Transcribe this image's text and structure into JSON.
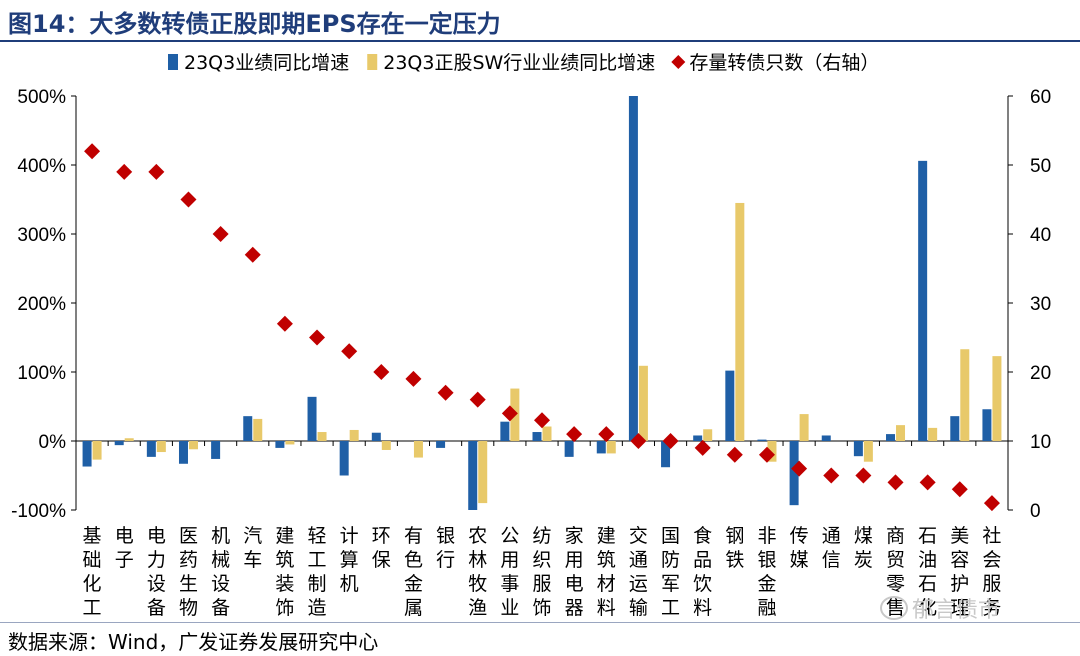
{
  "title": "图14：大多数转债正股即期EPS存在一定压力",
  "source": "数据来源：Wind，广发证券发展研究中心",
  "watermark": "郁言债市",
  "chart_data": {
    "type": "bar",
    "categories": [
      "基础化工",
      "电子",
      "电力设备",
      "医药生物",
      "机械设备",
      "汽车",
      "建筑装饰",
      "轻工制造",
      "计算机",
      "环保",
      "有色金属",
      "银行",
      "农林牧渔",
      "公用事业",
      "纺织服饰",
      "家用电器",
      "建筑材料",
      "交通运输",
      "国防军工",
      "食品饮料",
      "钢铁",
      "非银金融",
      "传媒",
      "通信",
      "煤炭",
      "商贸零售",
      "石油石化",
      "美容护理",
      "社会服务"
    ],
    "series": [
      {
        "name": "23Q3业绩同比增速",
        "type": "bar",
        "color": "#1f5fa6",
        "axis": "left",
        "values": [
          -37,
          -6,
          -23,
          -33,
          -26,
          36,
          -10,
          64,
          -50,
          12,
          0,
          -10,
          -100,
          28,
          13,
          -23,
          -18,
          500,
          -38,
          8,
          102,
          2,
          -93,
          8,
          -22,
          10,
          406,
          36,
          46
        ]
      },
      {
        "name": "23Q3正股SW行业业绩同比增速",
        "type": "bar",
        "color": "#e8c96a",
        "axis": "left",
        "values": [
          -27,
          4,
          -16,
          -12,
          0,
          32,
          -5,
          13,
          16,
          -13,
          -24,
          0,
          -90,
          76,
          21,
          0,
          -18,
          109,
          0,
          17,
          345,
          -30,
          39,
          0,
          -30,
          23,
          19,
          133,
          123
        ]
      },
      {
        "name": "存量转债只数（右轴）",
        "type": "scatter",
        "color": "#c00000",
        "axis": "right",
        "values": [
          52,
          49,
          49,
          45,
          40,
          37,
          27,
          25,
          23,
          20,
          19,
          17,
          16,
          14,
          13,
          11,
          11,
          10,
          10,
          9,
          8,
          8,
          6,
          5,
          5,
          4,
          4,
          3,
          1
        ]
      }
    ],
    "yleft": {
      "min": -100,
      "max": 500,
      "ticks": [
        "-100%",
        "0%",
        "100%",
        "200%",
        "300%",
        "400%",
        "500%"
      ]
    },
    "yright": {
      "min": 0,
      "max": 60,
      "ticks": [
        "0",
        "10",
        "20",
        "30",
        "40",
        "50",
        "60"
      ]
    },
    "legend_position": "top"
  }
}
